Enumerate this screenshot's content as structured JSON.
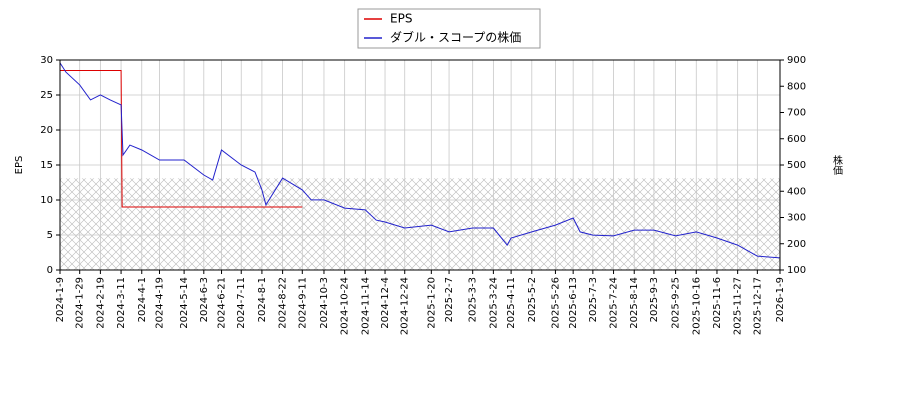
{
  "chart_data": {
    "type": "line",
    "ylabel": "EPS",
    "y2label": "株価",
    "xlim": [
      "2024-1-9",
      "2026-1-9"
    ],
    "xticks": [
      "2024-1-9",
      "2024-1-29",
      "2024-2-19",
      "2024-3-11",
      "2024-4-1",
      "2024-4-19",
      "2024-5-14",
      "2024-6-3",
      "2024-6-21",
      "2024-7-11",
      "2024-8-1",
      "2024-8-22",
      "2024-9-11",
      "2024-10-3",
      "2024-10-24",
      "2024-11-14",
      "2024-12-4",
      "2024-12-24",
      "2025-1-20",
      "2025-2-7",
      "2025-3-3",
      "2025-3-24",
      "2025-4-11",
      "2025-5-2",
      "2025-5-26",
      "2025-6-13",
      "2025-7-3",
      "2025-7-24",
      "2025-8-14",
      "2025-9-3",
      "2025-9-25",
      "2025-10-16",
      "2025-11-6",
      "2025-11-27",
      "2025-12-17",
      "2026-1-9"
    ],
    "ylim": [
      0,
      30
    ],
    "yticks": [
      0,
      5,
      10,
      15,
      20,
      25,
      30
    ],
    "y2lim": [
      100,
      900
    ],
    "y2ticks": [
      100,
      200,
      300,
      400,
      500,
      600,
      700,
      800,
      900
    ],
    "grid": true,
    "hatch_ylim": [
      0,
      13.1
    ],
    "series": [
      {
        "name": "EPS",
        "color": "#dd0000",
        "x": [
          "2024-1-9",
          "2024-3-11",
          "2024-3-12",
          "2024-9-11"
        ],
        "values": [
          28.5,
          28.5,
          9.0,
          9.0
        ]
      },
      {
        "name": "ダブル・スコープの株価",
        "color": "#2222cc",
        "axis": "y2",
        "x": [
          "2024-1-9",
          "2024-1-15",
          "2024-1-29",
          "2024-2-9",
          "2024-2-19",
          "2024-2-29",
          "2024-3-11",
          "2024-3-13",
          "2024-3-20",
          "2024-4-1",
          "2024-4-19",
          "2024-5-14",
          "2024-6-3",
          "2024-6-12",
          "2024-6-21",
          "2024-7-11",
          "2024-7-25",
          "2024-8-1",
          "2024-8-5",
          "2024-8-22",
          "2024-9-11",
          "2024-9-20",
          "2024-10-3",
          "2024-10-24",
          "2024-11-14",
          "2024-11-25",
          "2024-12-4",
          "2024-12-24",
          "2025-1-20",
          "2025-2-7",
          "2025-3-3",
          "2025-3-24",
          "2025-4-7",
          "2025-4-11",
          "2025-5-2",
          "2025-5-26",
          "2025-6-13",
          "2025-6-20",
          "2025-7-3",
          "2025-7-24",
          "2025-8-14",
          "2025-9-3",
          "2025-9-25",
          "2025-10-16",
          "2025-11-6",
          "2025-11-27",
          "2025-12-17",
          "2026-1-9"
        ],
        "values": [
          889,
          854,
          805,
          748,
          767,
          748,
          729,
          538,
          576,
          557,
          519,
          519,
          462,
          443,
          557,
          500,
          473,
          405,
          348,
          450,
          405,
          367,
          367,
          336,
          329,
          290,
          283,
          260,
          271,
          245,
          260,
          260,
          195,
          222,
          245,
          271,
          298,
          245,
          233,
          230,
          252,
          252,
          230,
          245,
          222,
          195,
          153,
          146
        ]
      }
    ],
    "legend": "upper center"
  }
}
